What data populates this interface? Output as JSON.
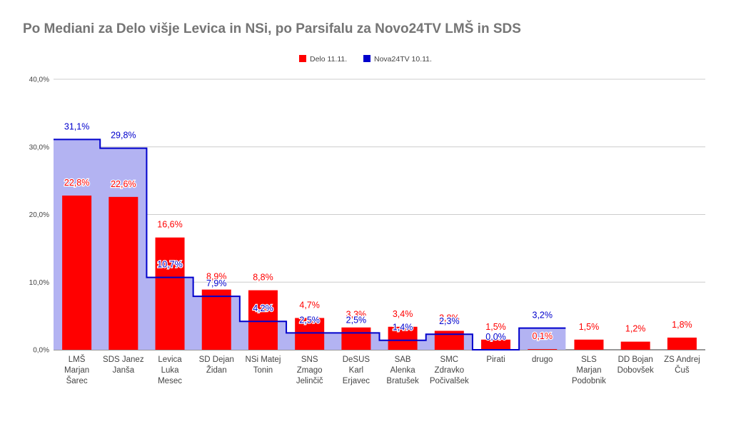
{
  "chart_data": {
    "type": "bar",
    "title": "Po Mediani za Delo višje Levica in NSi, po Parsifalu za Novo24TV LMŠ in SDS",
    "xlabel": "",
    "ylabel": "",
    "ylim": [
      0,
      40
    ],
    "yticks": [
      "0,0%",
      "10,0%",
      "20,0%",
      "30,0%",
      "40,0%"
    ],
    "grid": true,
    "legend_position": "top-center",
    "categories": [
      [
        "LMŠ",
        "Marjan",
        "Šarec"
      ],
      [
        "SDS Janez",
        "Janša"
      ],
      [
        "Levica",
        "Luka",
        "Mesec"
      ],
      [
        "SD Dejan",
        "Židan"
      ],
      [
        "NSi Matej",
        "Tonin"
      ],
      [
        "SNS",
        "Zmago",
        "Jelinčič"
      ],
      [
        "DeSUS",
        "Karl",
        "Erjavec"
      ],
      [
        "SAB",
        "Alenka",
        "Bratušek"
      ],
      [
        "SMC",
        "Zdravko",
        "Počivalšek"
      ],
      [
        "Pirati"
      ],
      [
        "drugo"
      ],
      [
        "SLS",
        "Marjan",
        "Podobnik"
      ],
      [
        "DD Bojan",
        "Dobovšek"
      ],
      [
        "ZS Andrej",
        "Čuš"
      ]
    ],
    "series": [
      {
        "name": "Delo 11.11.",
        "kind": "bar",
        "color": "#ff0000",
        "values": [
          22.8,
          22.6,
          16.6,
          8.9,
          8.8,
          4.7,
          3.3,
          3.4,
          2.8,
          1.5,
          0.1,
          1.5,
          1.2,
          1.8
        ],
        "labels": [
          "22,8%",
          "22,6%",
          "16,6%",
          "8,9%",
          "8,8%",
          "4,7%",
          "3,3%",
          "3,4%",
          "2,8%",
          "1,5%",
          "0,1%",
          "1,5%",
          "1,2%",
          "1,8%"
        ]
      },
      {
        "name": "Nova24TV 10.11.",
        "kind": "stepped-area",
        "color": "#0000cc",
        "fill": "#b3b3f2",
        "values": [
          31.1,
          29.8,
          10.7,
          7.9,
          4.2,
          2.5,
          2.5,
          1.4,
          2.3,
          0.0,
          3.2,
          null,
          null,
          null
        ],
        "labels": [
          "31,1%",
          "29,8%",
          "10,7%",
          "7,9%",
          "4,2%",
          "2,5%",
          "2,5%",
          "1,4%",
          "2,3%",
          "0,0%",
          "3,2%",
          "",
          "",
          ""
        ]
      }
    ]
  }
}
